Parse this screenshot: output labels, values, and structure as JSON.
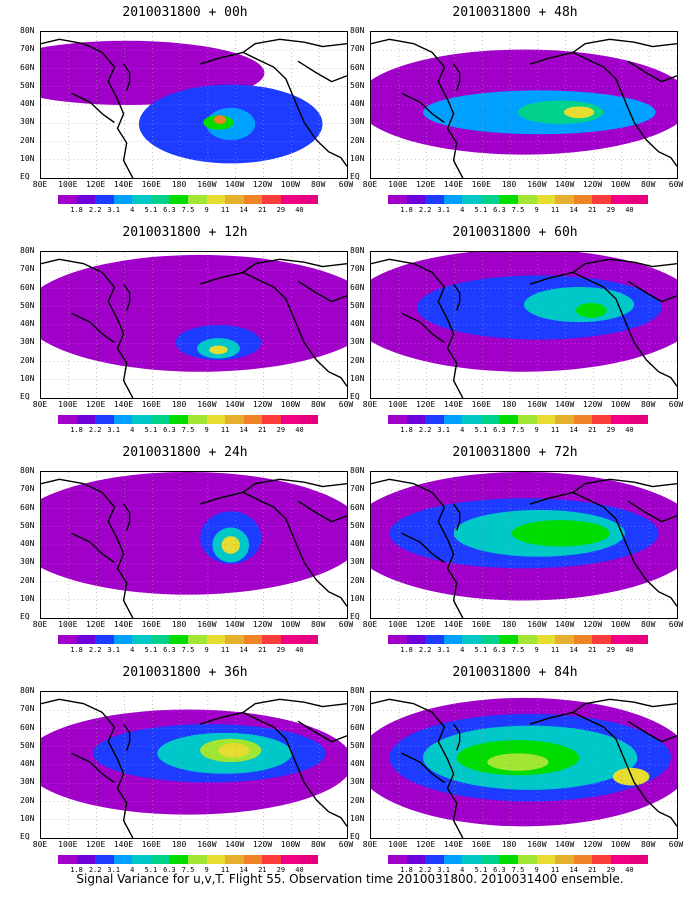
{
  "panels": [
    {
      "title": "2010031800 + 00h"
    },
    {
      "title": "2010031800 + 48h"
    },
    {
      "title": "2010031800 + 12h"
    },
    {
      "title": "2010031800 + 60h"
    },
    {
      "title": "2010031800 + 24h"
    },
    {
      "title": "2010031800 + 72h"
    },
    {
      "title": "2010031800 + 36h"
    },
    {
      "title": "2010031800 + 84h"
    }
  ],
  "lat_labels": [
    "80N",
    "70N",
    "60N",
    "50N",
    "40N",
    "30N",
    "20N",
    "10N",
    "EQ"
  ],
  "lon_labels": [
    "80E",
    "100E",
    "120E",
    "140E",
    "160E",
    "180",
    "160W",
    "140W",
    "120W",
    "100W",
    "80W",
    "60W"
  ],
  "colorbar": {
    "levels": [
      "1.8",
      "2.2",
      "3.1",
      "4",
      "5.1",
      "6.3",
      "7.5",
      "9",
      "11",
      "14",
      "21",
      "29",
      "40"
    ],
    "colors": [
      "#a000c8",
      "#6e00dc",
      "#1e3cff",
      "#00a0ff",
      "#00c8c8",
      "#00d28c",
      "#00dc00",
      "#a0e632",
      "#e6dc32",
      "#e6af2d",
      "#f08228",
      "#fa3c3c",
      "#f00082",
      "#e6007d"
    ]
  },
  "caption": "Signal Variance for u,v,T. Flight 55. Observation time 2010031800. 2010031400 ensemble."
}
